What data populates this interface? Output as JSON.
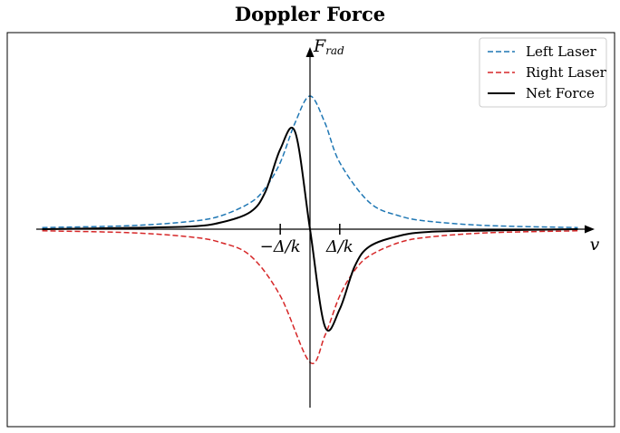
{
  "chart_data": {
    "type": "line",
    "title": "Doppler Force",
    "xlabel": "v",
    "ylabel": "F",
    "ylabel_subscript": "rad",
    "ticks": [
      {
        "x": -1,
        "label": "−Δ/k"
      },
      {
        "x": 1,
        "label": "Δ/k"
      }
    ],
    "xlim": [
      -9.2,
      9.2
    ],
    "ylim": [
      -1.12,
      1.21
    ],
    "grid": false,
    "legend_position": "top-right",
    "series": [
      {
        "name": "Left Laser",
        "color": "#1f77b4",
        "style": "dashed",
        "x": [
          -9,
          -6,
          -4,
          -3,
          -2,
          -1.5,
          -1,
          -0.5,
          0,
          0.5,
          1,
          2,
          3,
          4,
          6,
          9
        ],
        "y": [
          0.012,
          0.027,
          0.059,
          0.1,
          0.2,
          0.31,
          0.5,
          0.8,
          1.0,
          0.8,
          0.5,
          0.2,
          0.1,
          0.059,
          0.027,
          0.012
        ]
      },
      {
        "name": "Right Laser",
        "color": "#d62728",
        "style": "dashed",
        "x": [
          -9,
          -6,
          -4,
          -3,
          -2,
          -1,
          0,
          0.5,
          1,
          1.5,
          2,
          3,
          4,
          6,
          9
        ],
        "y": [
          -0.012,
          -0.027,
          -0.059,
          -0.1,
          -0.2,
          -0.5,
          -1.0,
          -0.8,
          -0.5,
          -0.31,
          -0.2,
          -0.1,
          -0.059,
          -0.027,
          -0.012
        ]
      },
      {
        "name": "Net Force",
        "color": "#000000",
        "style": "solid",
        "x": [
          -9,
          -6,
          -4,
          -3,
          -2,
          -1.5,
          -1,
          -0.5,
          0,
          0.5,
          1,
          1.5,
          2,
          3,
          4,
          6,
          9
        ],
        "y": [
          0.0,
          0.01,
          0.02,
          0.05,
          0.13,
          0.28,
          0.6,
          0.73,
          0.0,
          -0.73,
          -0.6,
          -0.28,
          -0.13,
          -0.05,
          -0.02,
          -0.01,
          0.0
        ]
      }
    ]
  }
}
